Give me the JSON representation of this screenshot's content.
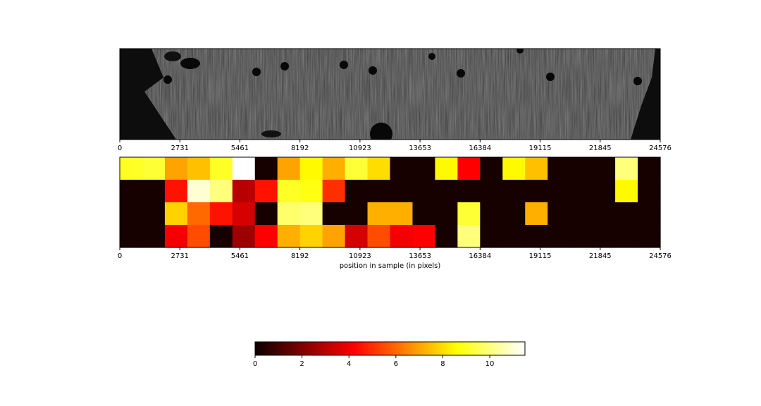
{
  "chart_data": [
    {
      "type": "image",
      "description_source": "grayscale microscopy image of sample",
      "x_ticks": [
        0,
        2731,
        5461,
        8192,
        10923,
        13653,
        16384,
        19115,
        21845,
        24576
      ],
      "xlim": [
        0,
        24576
      ]
    },
    {
      "type": "heatmap",
      "x_ticks": [
        0,
        2731,
        5461,
        8192,
        10923,
        13653,
        16384,
        19115,
        21845,
        24576
      ],
      "xlim": [
        0,
        24576
      ],
      "xlabel": "position in sample (in pixels)",
      "colormap": "hot",
      "n_cols": 24,
      "n_rows": 4,
      "values": [
        [
          9.0,
          9.2,
          7.0,
          7.5,
          9.0,
          11.5,
          0.2,
          7.0,
          8.5,
          7.2,
          9.2,
          8.0,
          0.2,
          0.2,
          8.5,
          4.2,
          0.2,
          8.5,
          7.5,
          0.2,
          0.2,
          0.2,
          10.0,
          0.2
        ],
        [
          0.2,
          0.2,
          4.5,
          11.0,
          10.0,
          3.0,
          4.5,
          9.0,
          8.8,
          5.0,
          0.2,
          0.2,
          0.2,
          0.2,
          0.2,
          0.2,
          0.2,
          0.2,
          0.2,
          0.2,
          0.2,
          0.2,
          8.5,
          0.2
        ],
        [
          0.2,
          0.2,
          7.8,
          6.0,
          4.5,
          3.5,
          0.2,
          9.8,
          10.0,
          0.2,
          0.2,
          7.2,
          7.2,
          0.2,
          0.2,
          9.2,
          0.2,
          0.2,
          7.2,
          0.2,
          0.2,
          0.2,
          0.2,
          0.2
        ],
        [
          0.2,
          0.2,
          4.0,
          5.5,
          0.2,
          2.5,
          4.2,
          7.2,
          7.8,
          7.0,
          3.5,
          5.5,
          4.0,
          4.2,
          0.2,
          10.0,
          0.2,
          0.2,
          0.2,
          0.2,
          0.2,
          0.2,
          0.2,
          0.2
        ]
      ]
    },
    {
      "type": "colorbar",
      "colormap": "hot",
      "range": [
        0,
        11.5
      ],
      "ticks": [
        0,
        2,
        4,
        6,
        8,
        10
      ]
    }
  ]
}
